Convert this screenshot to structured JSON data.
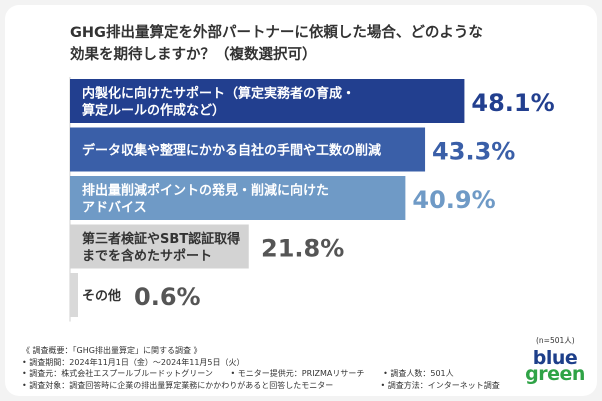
{
  "title": {
    "line1": "GHG排出量算定を外部パートナーに依頼した場合、どのような",
    "line2": "効果を期待しますか？（複数選択可）"
  },
  "chart_data": {
    "type": "bar",
    "orientation": "horizontal",
    "title": "GHG排出量算定を外部パートナーに依頼した場合、どのような効果を期待しますか？（複数選択可）",
    "categories": [
      [
        "内製化に向けたサポート（算定実務者の育成・",
        "算定ルールの作成など）"
      ],
      [
        "データ収集や整理にかかる自社の手間や工数の削減"
      ],
      [
        "排出量削減ポイントの発見・削減に向けた",
        "アドバイス"
      ],
      [
        "第三者検証やSBT認証取得",
        "までを含めたサポート"
      ],
      [
        "その他"
      ]
    ],
    "values": [
      48.1,
      43.3,
      40.9,
      21.8,
      0.6
    ],
    "value_labels": [
      "48.1%",
      "43.3%",
      "40.9%",
      "21.8%",
      "0.6%"
    ],
    "xlim": [
      0,
      50
    ],
    "bar_colors": [
      "#223f8f",
      "#3a5fa8",
      "#6f9ac6",
      "#d3d3d3",
      "#d9d9d9"
    ],
    "label_colors": [
      "#ffffff",
      "#ffffff",
      "#ffffff",
      "#333333",
      "#333333"
    ],
    "value_colors": [
      "#223f8f",
      "#3a5fa8",
      "#6f9ac6",
      "#555555",
      "#555555"
    ]
  },
  "note": "(n=501人)",
  "footer": {
    "rows": [
      [
        "《 調査概要：「GHG排出量算定」に関する調査 》"
      ],
      [
        "• 調査期間：2024年11月1日（金）〜2024年11月5日（火）"
      ],
      [
        "• 調査元：株式会社エスプールブルードットグリーン",
        "• モニター提供元：PRIZMAリサーチ",
        "• 調査人数：501人"
      ],
      [
        "• 調査対象：調査回答時に企業の排出量算定業務にかかわりがあると回答したモニター",
        "• 調査方法：インターネット調査"
      ]
    ]
  },
  "logo": {
    "top": "blue",
    "bottom": "green"
  },
  "colors": {
    "accent": "#223f8f",
    "brand_green": "#2fa346"
  }
}
